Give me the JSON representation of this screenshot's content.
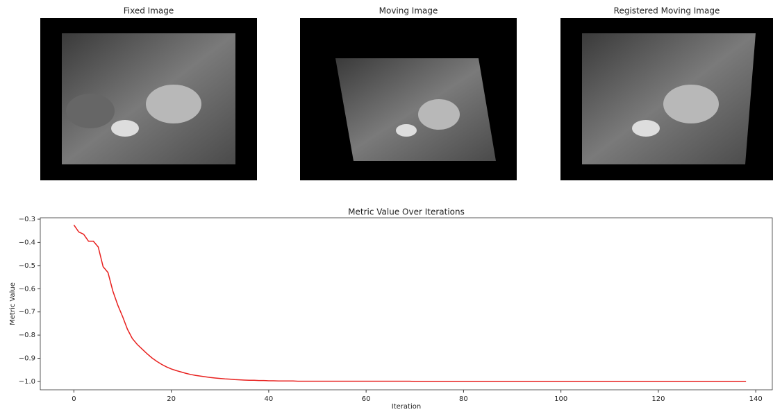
{
  "chart_data": [
    {
      "type": "image",
      "title": "Fixed Image"
    },
    {
      "type": "image",
      "title": "Moving Image"
    },
    {
      "type": "image",
      "title": "Registered Moving Image"
    },
    {
      "type": "line",
      "title": "Metric Value Over Iterations",
      "x_label": "Iteration",
      "y_label": "Metric Value",
      "xlim": [
        -6.9,
        143.4
      ],
      "ylim": [
        -1.036,
        -0.294
      ],
      "xticks": [
        0,
        20,
        40,
        60,
        80,
        100,
        120,
        140
      ],
      "yticks": [
        {
          "value": -0.3,
          "label": "−0.3"
        },
        {
          "value": -0.4,
          "label": "−0.4"
        },
        {
          "value": -0.5,
          "label": "−0.5"
        },
        {
          "value": -0.6,
          "label": "−0.6"
        },
        {
          "value": -0.7,
          "label": "−0.7"
        },
        {
          "value": -0.8,
          "label": "−0.8"
        },
        {
          "value": -0.9,
          "label": "−0.9"
        },
        {
          "value": -1.0,
          "label": "−1.0"
        }
      ],
      "color": "#e8201e",
      "x": [
        0,
        1,
        2,
        3,
        4,
        5,
        6,
        7,
        8,
        9,
        10,
        11,
        12,
        13,
        14,
        15,
        16,
        17,
        18,
        19,
        20,
        21,
        22,
        23,
        24,
        25,
        26,
        27,
        28,
        29,
        30,
        31,
        32,
        33,
        34,
        35,
        36,
        37,
        38,
        39,
        40,
        41,
        42,
        43,
        44,
        45,
        46,
        47,
        48,
        49,
        50,
        51,
        52,
        53,
        54,
        55,
        56,
        57,
        58,
        59,
        60,
        61,
        62,
        63,
        64,
        65,
        66,
        67,
        68,
        69,
        70,
        71,
        72,
        73,
        74,
        75,
        76,
        77,
        78,
        79,
        80,
        81,
        82,
        83,
        84,
        85,
        86,
        87,
        88,
        89,
        90,
        91,
        92,
        93,
        94,
        95,
        96,
        97,
        98,
        99,
        100,
        101,
        102,
        103,
        104,
        105,
        106,
        107,
        108,
        109,
        110,
        111,
        112,
        113,
        114,
        115,
        116,
        117,
        118,
        119,
        120,
        121,
        122,
        123,
        124,
        125,
        126,
        127,
        128,
        129,
        130,
        131,
        132,
        133,
        134,
        135,
        136,
        137,
        138
      ],
      "values": [
        -0.325,
        -0.355,
        -0.365,
        -0.395,
        -0.395,
        -0.42,
        -0.505,
        -0.53,
        -0.61,
        -0.67,
        -0.72,
        -0.775,
        -0.815,
        -0.84,
        -0.86,
        -0.88,
        -0.898,
        -0.913,
        -0.926,
        -0.937,
        -0.946,
        -0.953,
        -0.959,
        -0.965,
        -0.97,
        -0.974,
        -0.977,
        -0.98,
        -0.983,
        -0.985,
        -0.987,
        -0.989,
        -0.99,
        -0.992,
        -0.993,
        -0.994,
        -0.995,
        -0.995,
        -0.996,
        -0.996,
        -0.997,
        -0.997,
        -0.998,
        -0.998,
        -0.998,
        -0.998,
        -0.999,
        -0.999,
        -0.999,
        -0.999,
        -0.999,
        -0.999,
        -0.999,
        -0.999,
        -0.999,
        -0.999,
        -0.999,
        -0.999,
        -0.999,
        -0.999,
        -0.999,
        -0.999,
        -0.999,
        -0.999,
        -0.999,
        -0.999,
        -0.999,
        -0.999,
        -0.999,
        -0.999,
        -1,
        -1,
        -1,
        -1,
        -1,
        -1,
        -1,
        -1,
        -1,
        -1,
        -1,
        -1,
        -1,
        -1,
        -1,
        -1,
        -1,
        -1,
        -1,
        -1,
        -1,
        -1,
        -1,
        -1,
        -1,
        -1,
        -1,
        -1,
        -1,
        -1,
        -1,
        -1,
        -1,
        -1,
        -1,
        -1,
        -1,
        -1,
        -1,
        -1,
        -1,
        -1,
        -1,
        -1,
        -1,
        -1,
        -1,
        -1,
        -1,
        -1,
        -1,
        -1,
        -1,
        -1,
        -1,
        -1,
        -1,
        -1,
        -1,
        -1,
        -1,
        -1,
        -1,
        -1,
        -1,
        -1,
        -1,
        -1,
        -1
      ]
    }
  ]
}
